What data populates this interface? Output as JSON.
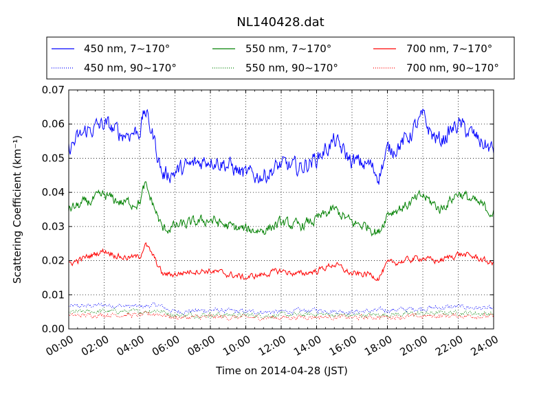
{
  "chart_data": {
    "type": "line",
    "title": "NL140428.dat",
    "xlabel": "Time on 2014-04-28 (JST)",
    "ylabel": "Scattering Coefficient (km⁻¹)",
    "xlim": [
      "00:00",
      "24:00"
    ],
    "ylim": [
      0,
      0.07
    ],
    "x_ticks": [
      "00:00",
      "02:00",
      "04:00",
      "06:00",
      "08:00",
      "10:00",
      "12:00",
      "14:00",
      "16:00",
      "18:00",
      "20:00",
      "22:00",
      "24:00"
    ],
    "y_ticks": [
      "0.00",
      "0.01",
      "0.02",
      "0.03",
      "0.04",
      "0.05",
      "0.06",
      "0.07"
    ],
    "grid": true,
    "legend_placement": "top, above plot, 3 columns",
    "series": [
      {
        "name": "450 nm, 7∼170°",
        "color": "#0000ff",
        "style": "solid",
        "x": [
          0,
          1,
          2,
          3,
          4,
          4.3,
          4.8,
          5.3,
          6,
          7,
          8,
          9,
          10,
          11,
          12,
          13,
          14,
          15,
          16,
          17,
          17.5,
          18,
          19,
          20,
          20.5,
          21,
          22,
          23,
          24
        ],
        "y": [
          0.053,
          0.058,
          0.06,
          0.057,
          0.058,
          0.064,
          0.056,
          0.045,
          0.046,
          0.048,
          0.05,
          0.048,
          0.045,
          0.045,
          0.048,
          0.047,
          0.05,
          0.055,
          0.049,
          0.048,
          0.045,
          0.052,
          0.055,
          0.062,
          0.057,
          0.055,
          0.06,
          0.056,
          0.052
        ]
      },
      {
        "name": "450 nm, 90∼170°",
        "color": "#0000ff",
        "style": "dotted",
        "x": [
          0,
          2,
          4,
          5,
          6,
          8,
          10,
          12,
          14,
          16,
          18,
          20,
          22,
          24
        ],
        "y": [
          0.0065,
          0.007,
          0.0065,
          0.007,
          0.005,
          0.0055,
          0.005,
          0.005,
          0.0055,
          0.005,
          0.0055,
          0.006,
          0.0065,
          0.0058
        ]
      },
      {
        "name": "550 nm, 7∼170°",
        "color": "#008000",
        "style": "solid",
        "x": [
          0,
          1,
          2,
          3,
          4,
          4.3,
          4.8,
          5.3,
          6,
          7,
          8,
          9,
          10,
          11,
          12,
          13,
          14,
          15,
          16,
          17,
          17.5,
          18,
          19,
          20,
          20.5,
          21,
          22,
          23,
          24
        ],
        "y": [
          0.035,
          0.037,
          0.039,
          0.037,
          0.037,
          0.042,
          0.036,
          0.029,
          0.03,
          0.031,
          0.032,
          0.03,
          0.029,
          0.029,
          0.031,
          0.03,
          0.032,
          0.035,
          0.031,
          0.03,
          0.028,
          0.034,
          0.036,
          0.039,
          0.037,
          0.035,
          0.04,
          0.037,
          0.034
        ]
      },
      {
        "name": "550 nm, 90∼170°",
        "color": "#008000",
        "style": "dotted",
        "x": [
          0,
          2,
          4,
          5,
          6,
          8,
          10,
          12,
          14,
          16,
          18,
          20,
          22,
          24
        ],
        "y": [
          0.0048,
          0.0052,
          0.005,
          0.0055,
          0.004,
          0.0042,
          0.004,
          0.004,
          0.0043,
          0.004,
          0.0042,
          0.0045,
          0.0048,
          0.0044
        ]
      },
      {
        "name": "700 nm, 7∼170°",
        "color": "#ff0000",
        "style": "solid",
        "x": [
          0,
          1,
          2,
          3,
          4,
          4.3,
          4.8,
          5.3,
          6,
          7,
          8,
          9,
          10,
          11,
          12,
          13,
          14,
          15,
          16,
          17,
          17.5,
          18,
          19,
          20,
          20.5,
          21,
          22,
          23,
          24
        ],
        "y": [
          0.019,
          0.021,
          0.023,
          0.021,
          0.021,
          0.025,
          0.021,
          0.016,
          0.016,
          0.017,
          0.017,
          0.016,
          0.015,
          0.016,
          0.017,
          0.016,
          0.017,
          0.019,
          0.016,
          0.016,
          0.015,
          0.019,
          0.02,
          0.021,
          0.02,
          0.02,
          0.022,
          0.021,
          0.019
        ]
      },
      {
        "name": "700 nm, 90∼170°",
        "color": "#ff0000",
        "style": "dotted",
        "x": [
          0,
          2,
          4,
          5,
          6,
          8,
          10,
          12,
          14,
          16,
          18,
          20,
          22,
          24
        ],
        "y": [
          0.0038,
          0.0042,
          0.004,
          0.0045,
          0.0033,
          0.0035,
          0.0033,
          0.0033,
          0.0036,
          0.0033,
          0.0035,
          0.0037,
          0.0039,
          0.0036
        ]
      }
    ]
  }
}
